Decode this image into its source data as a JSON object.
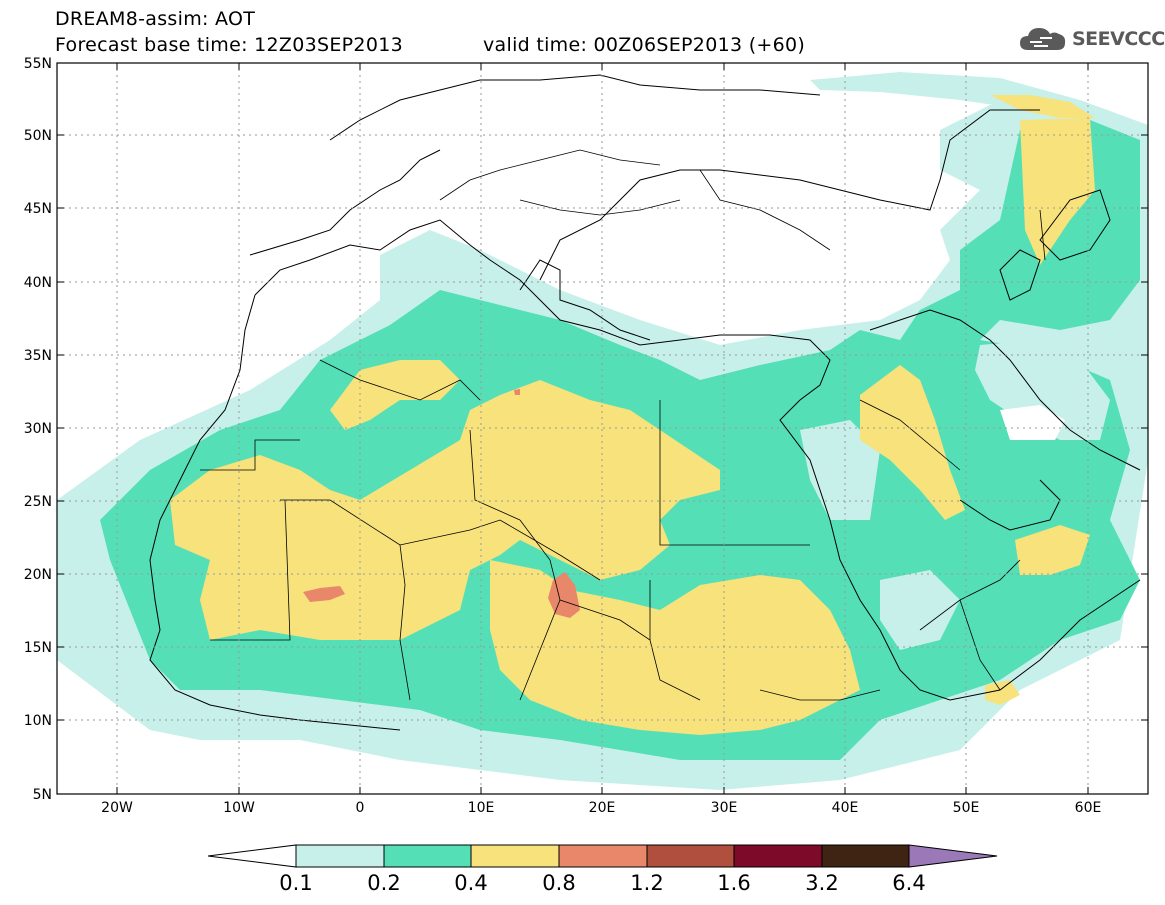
{
  "header": {
    "title_line1": "DREAM8-assim: AOT",
    "title_line2_base": "Forecast base time: 12Z03SEP2013",
    "title_line2_valid": "valid time: 00Z06SEP2013 (+60)",
    "logo_text": "SEEVCCC",
    "logo_icon": "cloud-icon"
  },
  "map": {
    "lon_range": [
      -25,
      65
    ],
    "lat_range": [
      5,
      55
    ],
    "lat_ticks": [
      "5N",
      "10N",
      "15N",
      "20N",
      "25N",
      "30N",
      "35N",
      "40N",
      "45N",
      "50N",
      "55N"
    ],
    "lon_ticks": [
      "20W",
      "10W",
      "0",
      "10E",
      "20E",
      "30E",
      "40E",
      "50E",
      "60E"
    ],
    "grid": "dotted"
  },
  "colorbar": {
    "levels": [
      "0.1",
      "0.2",
      "0.4",
      "0.8",
      "1.2",
      "1.6",
      "3.2",
      "6.4"
    ],
    "colors": [
      "#ffffff",
      "#c7f0ea",
      "#55dfb7",
      "#f7e27c",
      "#e8876a",
      "#b04f3e",
      "#7e0a2a",
      "#3f2414",
      "#9b78b8"
    ]
  }
}
